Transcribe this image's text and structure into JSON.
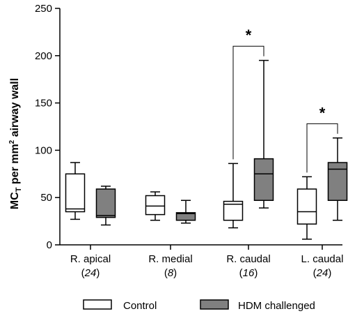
{
  "chart_data": {
    "type": "box",
    "ylabel_main": "MC",
    "ylabel_sub": "T",
    "ylabel_rest1": " per mm",
    "ylabel_sup": "2",
    "ylabel_rest2": " airway wall",
    "ylim": [
      0,
      250
    ],
    "yticks": [
      "0",
      "50",
      "100",
      "150",
      "200",
      "250"
    ],
    "categories": [
      {
        "name": "R. apical",
        "n": "24"
      },
      {
        "name": "R. medial",
        "n": "8"
      },
      {
        "name": "R. caudal",
        "n": "16"
      },
      {
        "name": "L. caudal",
        "n": "24"
      }
    ],
    "series": [
      {
        "name": "Control",
        "color": "#ffffff",
        "boxes": [
          {
            "min": 27,
            "q1": 35,
            "median": 38,
            "q3": 75,
            "max": 87
          },
          {
            "min": 26,
            "q1": 32,
            "median": 41,
            "q3": 52,
            "max": 56
          },
          {
            "min": 18,
            "q1": 26,
            "median": 43,
            "q3": 46,
            "max": 86
          },
          {
            "min": 6,
            "q1": 22,
            "median": 35,
            "q3": 59,
            "max": 72
          }
        ]
      },
      {
        "name": "HDM challenged",
        "color": "#808080",
        "boxes": [
          {
            "min": 21,
            "q1": 29,
            "median": 31,
            "q3": 59,
            "max": 62
          },
          {
            "min": 23,
            "q1": 26,
            "median": 33,
            "q3": 34,
            "max": 47
          },
          {
            "min": 39,
            "q1": 47,
            "median": 75,
            "q3": 91,
            "max": 195
          },
          {
            "min": 26,
            "q1": 47,
            "median": 80,
            "q3": 87,
            "max": 113
          }
        ]
      }
    ],
    "significance": [
      {
        "category": 2,
        "label": "*",
        "y": 210
      },
      {
        "category": 3,
        "label": "*",
        "y": 128
      }
    ],
    "legend_placement": "bottom"
  }
}
